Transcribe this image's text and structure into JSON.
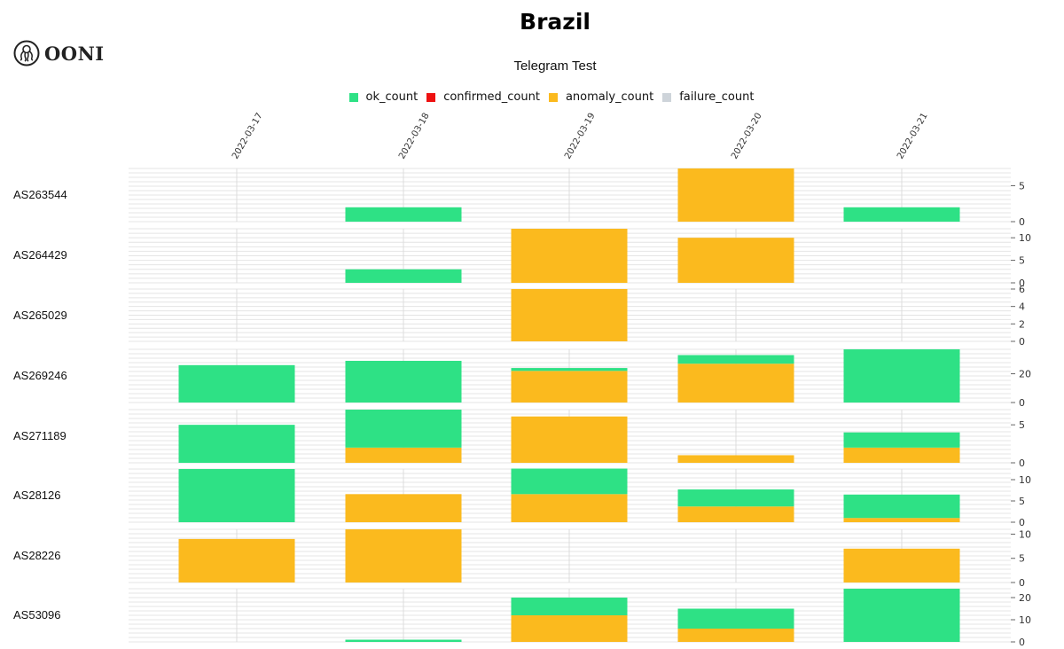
{
  "page": {
    "title": "Brazil",
    "logo_text": "OONI",
    "subtitle": "Telegram Test"
  },
  "legend": [
    {
      "label": "ok_count",
      "color": "#2ee185"
    },
    {
      "label": "confirmed_count",
      "color": "#ee1111"
    },
    {
      "label": "anomaly_count",
      "color": "#fbba1e"
    },
    {
      "label": "failure_count",
      "color": "#ced4da"
    }
  ],
  "chart_data": {
    "type": "bar",
    "subtype": "stacked-grid",
    "title": "Telegram Test",
    "dates": [
      "2022-03-17",
      "2022-03-18",
      "2022-03-19",
      "2022-03-20",
      "2022-03-21"
    ],
    "series_order": [
      "anomaly_count",
      "ok_count"
    ],
    "colors": {
      "ok_count": "#2ee185",
      "anomaly_count": "#fbba1e",
      "confirmed_count": "#ee1111",
      "failure_count": "#ced4da"
    },
    "grid": true,
    "rows": [
      {
        "name": "AS263544",
        "ymax": 7.4,
        "ticks": [
          0,
          5
        ],
        "ok_count": [
          0,
          2,
          0,
          0,
          2
        ],
        "anomaly_count": [
          0,
          0,
          0,
          7.4,
          0
        ]
      },
      {
        "name": "AS264429",
        "ymax": 12,
        "ticks": [
          0,
          5,
          10
        ],
        "ok_count": [
          0,
          3,
          0,
          0,
          0
        ],
        "anomaly_count": [
          0,
          0,
          12,
          10,
          0
        ]
      },
      {
        "name": "AS265029",
        "ymax": 6,
        "ticks": [
          0,
          2,
          4,
          6
        ],
        "ok_count": [
          0,
          0,
          0,
          0,
          0
        ],
        "anomaly_count": [
          0,
          0,
          6,
          0,
          0
        ]
      },
      {
        "name": "AS269246",
        "ymax": 37,
        "ticks": [
          0,
          20
        ],
        "ok_count": [
          26,
          29,
          2,
          6,
          37
        ],
        "anomaly_count": [
          0,
          0,
          22,
          27,
          0
        ]
      },
      {
        "name": "AS271189",
        "ymax": 7,
        "ticks": [
          0,
          5
        ],
        "ok_count": [
          5,
          5,
          0,
          0,
          2
        ],
        "anomaly_count": [
          0,
          2,
          6.1,
          1,
          2
        ]
      },
      {
        "name": "AS28126",
        "ymax": 12.5,
        "ticks": [
          0,
          5,
          10
        ],
        "ok_count": [
          12.5,
          0,
          6,
          4,
          5.5
        ],
        "anomaly_count": [
          0,
          6.6,
          6.6,
          3.7,
          1
        ]
      },
      {
        "name": "AS28226",
        "ymax": 11,
        "ticks": [
          0,
          5,
          10
        ],
        "ok_count": [
          0,
          0,
          0,
          0,
          0
        ],
        "anomaly_count": [
          9,
          11,
          0,
          0,
          7
        ]
      },
      {
        "name": "AS53096",
        "ymax": 24,
        "ticks": [
          0,
          10,
          20
        ],
        "ok_count": [
          0,
          1,
          8,
          9,
          24
        ],
        "anomaly_count": [
          0,
          0,
          12,
          6,
          0
        ]
      }
    ]
  }
}
